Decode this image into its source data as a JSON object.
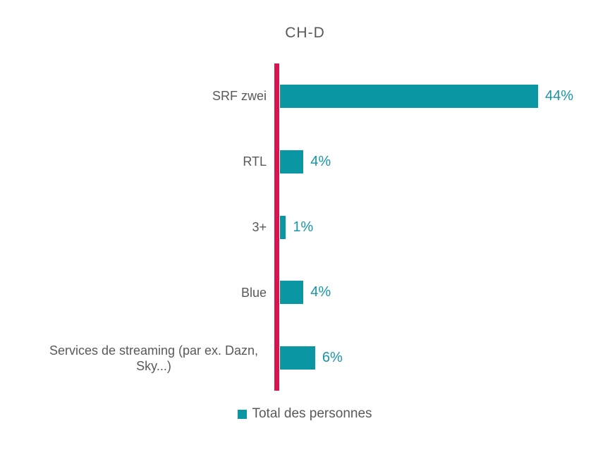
{
  "title": "CH-D",
  "legend": {
    "label": "Total des personnes"
  },
  "colors": {
    "bar": "#0a97a3",
    "axis_line": "#d9134f",
    "value_text": "#1795a8",
    "label_text": "#595959",
    "title_text": "#595959"
  },
  "chart_data": {
    "type": "bar",
    "orientation": "horizontal",
    "title": "CH-D",
    "categories": [
      "SRF zwei",
      "RTL",
      "3+",
      "Blue",
      "Services de streaming (par ex. Dazn, Sky...)"
    ],
    "values": [
      44,
      4,
      1,
      4,
      6
    ],
    "value_labels": [
      "44%",
      "4%",
      "1%",
      "4%",
      "6%"
    ],
    "series": [
      {
        "name": "Total des personnes",
        "values": [
          44,
          4,
          1,
          4,
          6
        ]
      }
    ],
    "unit": "%",
    "xlim": [
      0,
      44
    ],
    "xlabel": "",
    "ylabel": "",
    "grid": false,
    "legend_position": "bottom",
    "value_label_position": "outside-end"
  }
}
